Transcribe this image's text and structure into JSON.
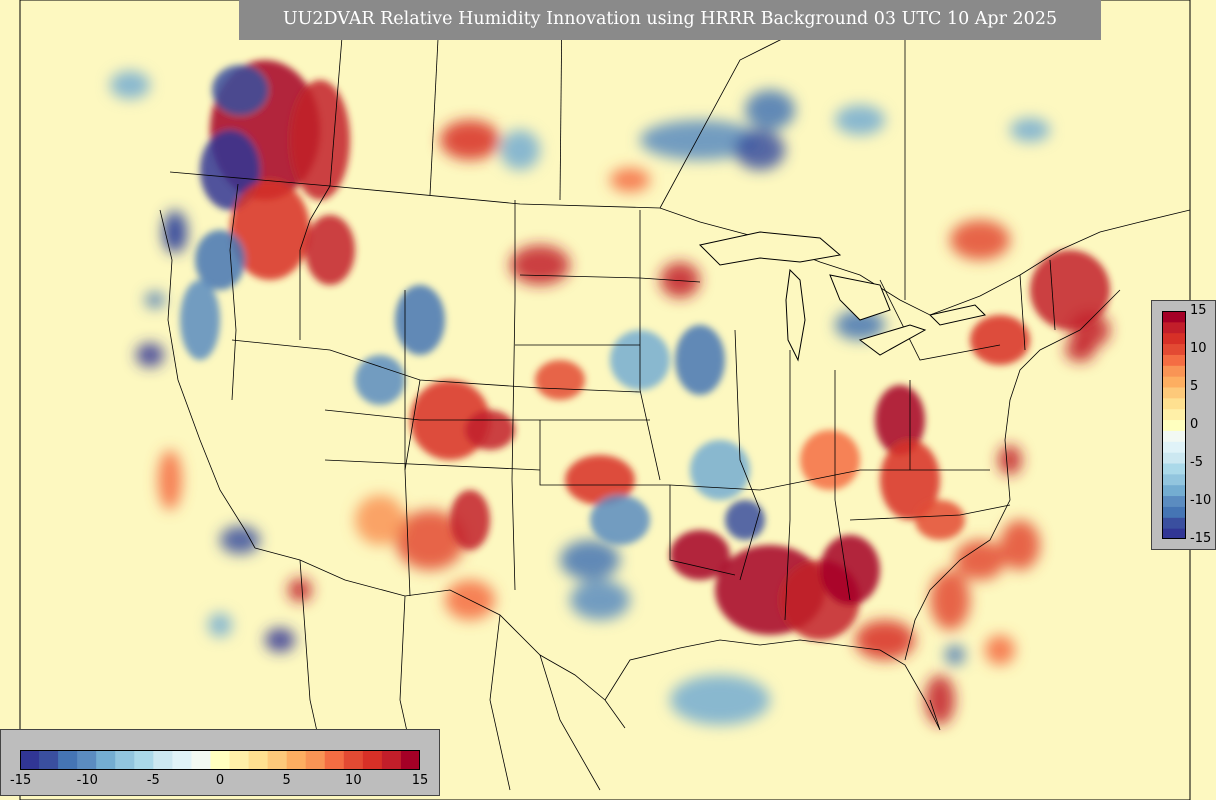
{
  "title": "UU2DVAR Relative Humidity Innovation using HRRR Background 03 UTC 10 Apr 2025",
  "colorbar": {
    "min": -15,
    "max": 15,
    "vertical_ticks": [
      "15",
      "10",
      "5",
      "0",
      "-5",
      "-10",
      "-15"
    ],
    "horizontal_ticks": [
      "-15",
      "-10",
      "-5",
      "0",
      "5",
      "10",
      "15"
    ],
    "colors": [
      "#313695",
      "#3a4f9f",
      "#4575b4",
      "#5b8cc0",
      "#74add1",
      "#92c5de",
      "#abd9e9",
      "#cce8f1",
      "#e0f3f8",
      "#f2f9f3",
      "#ffffbf",
      "#fff0a8",
      "#fee090",
      "#fdc97a",
      "#fdae61",
      "#f99455",
      "#f46d43",
      "#e34a33",
      "#d73027",
      "#c21e2a",
      "#a50026"
    ]
  },
  "colormap": "RdYlBu_r",
  "background_color": "#fdf8c0"
}
